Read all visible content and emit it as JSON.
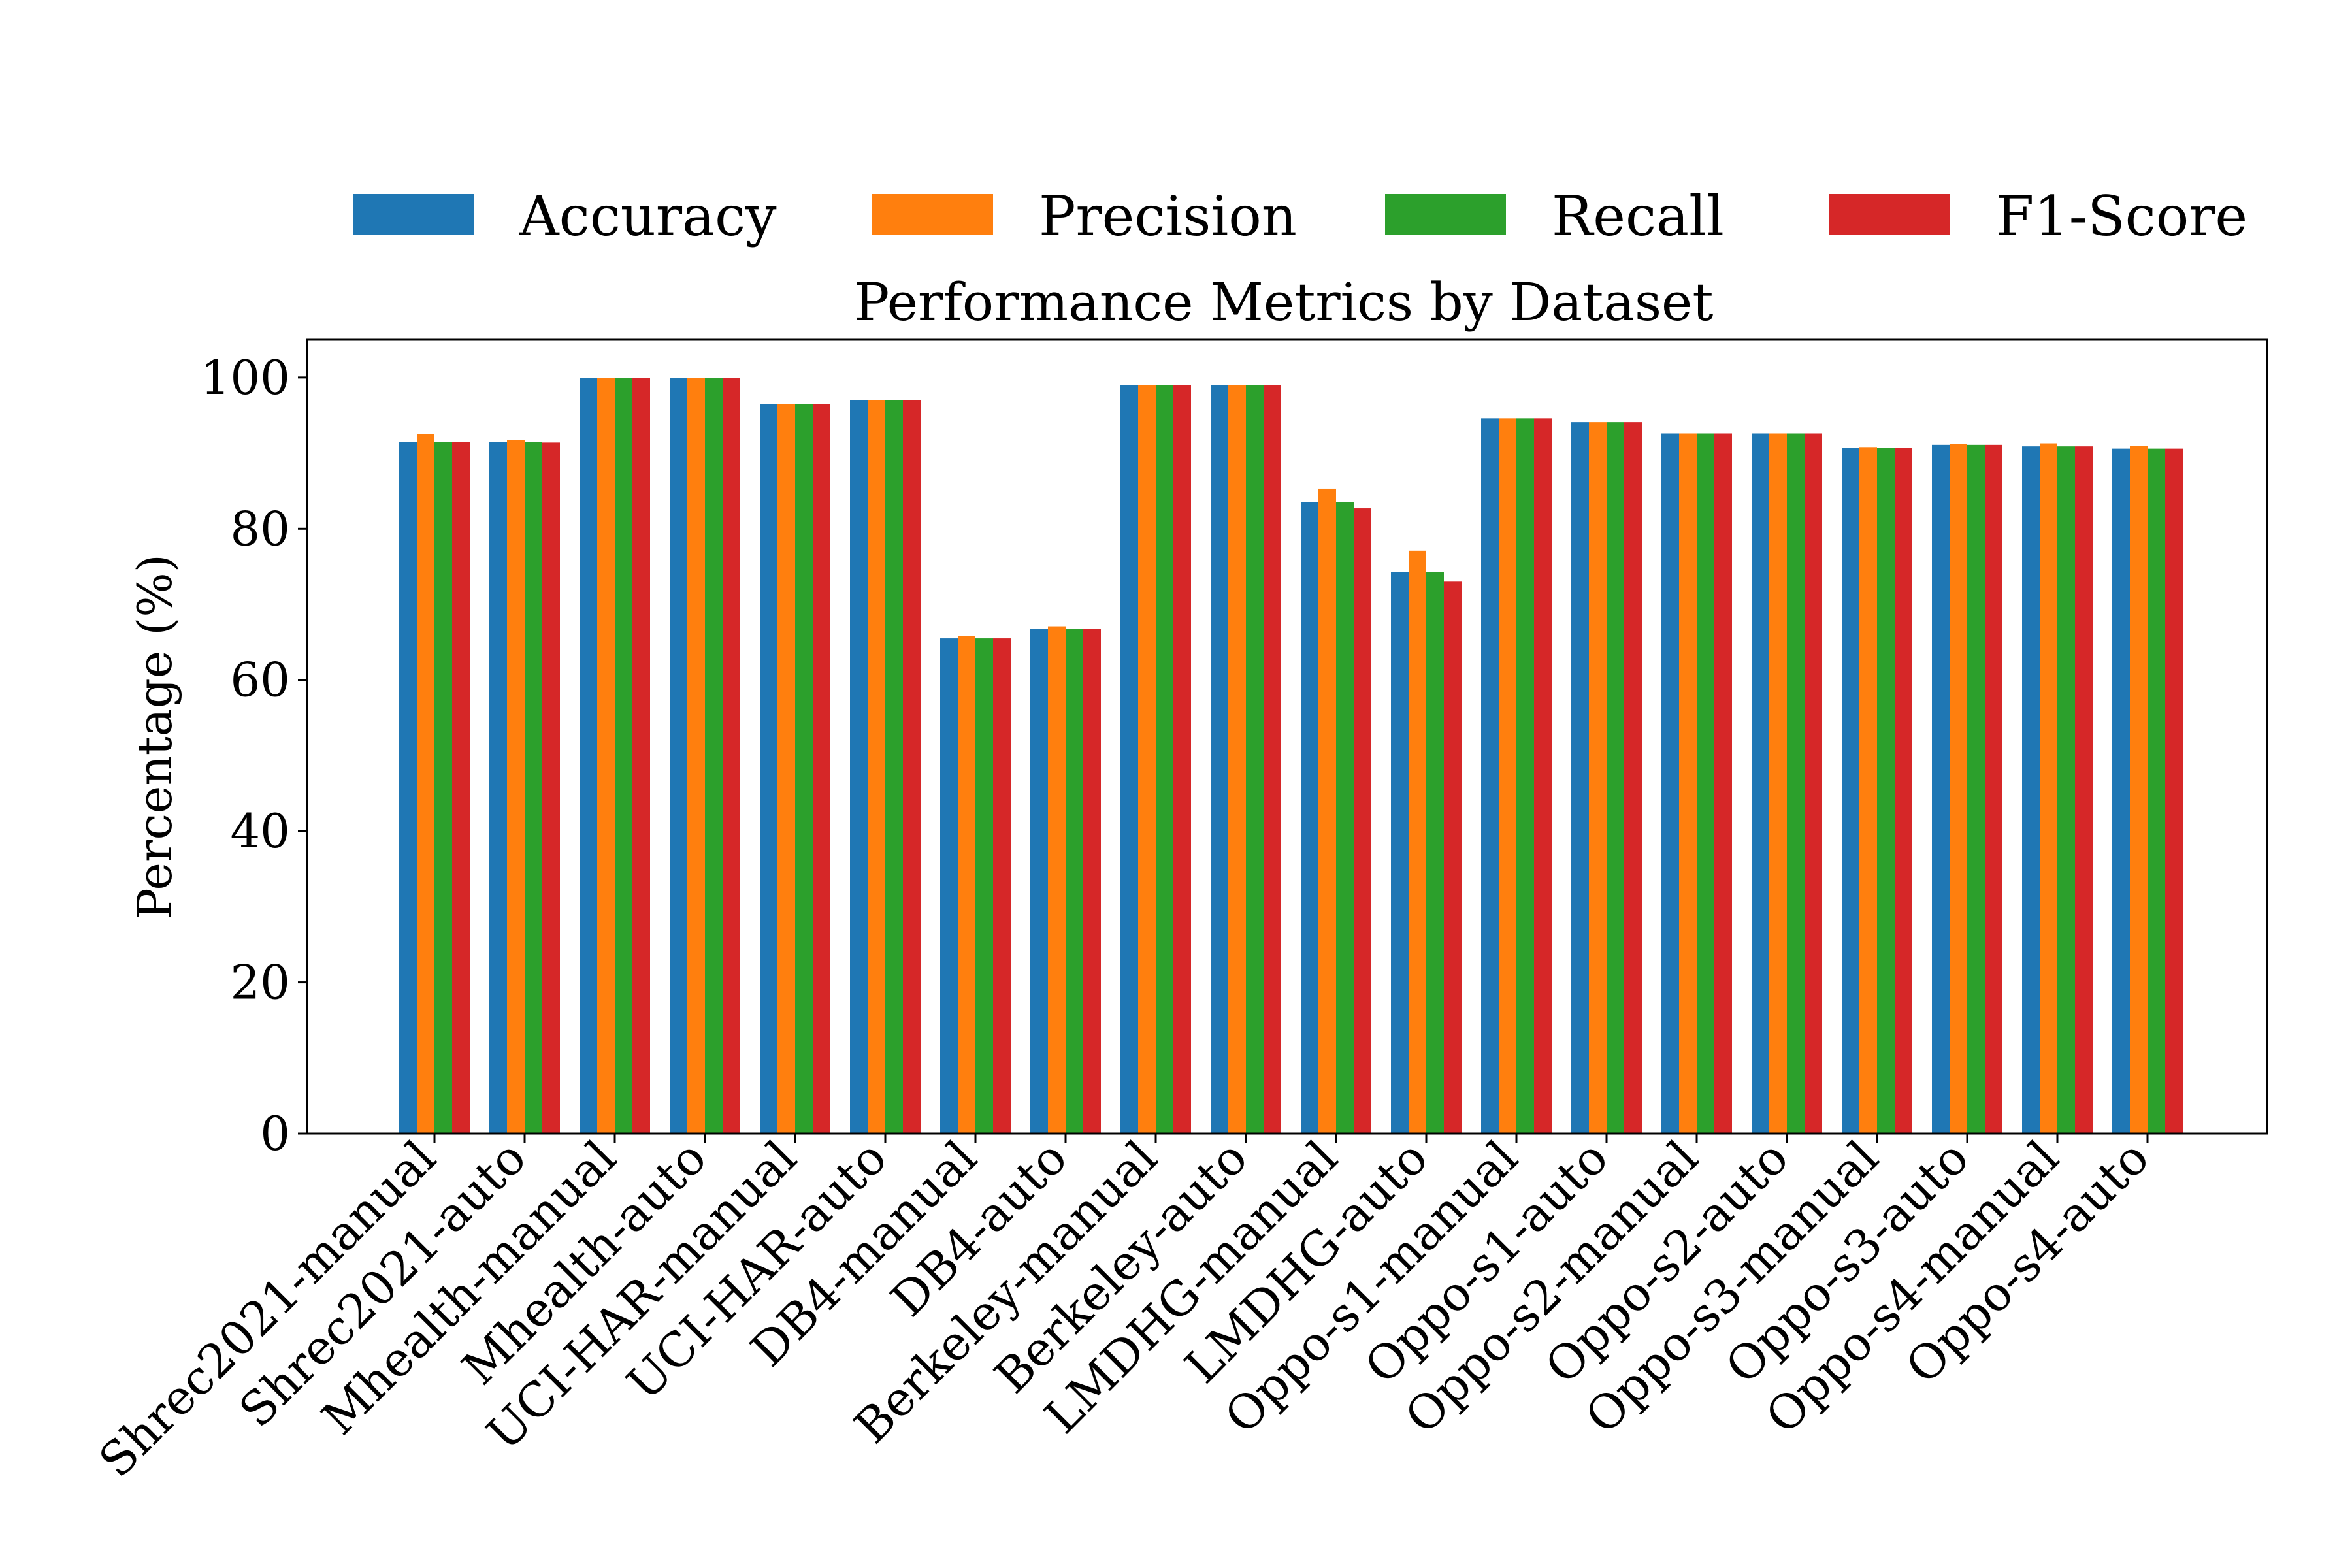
{
  "chart_data": {
    "type": "bar",
    "title": "Performance Metrics by Dataset",
    "xlabel": "",
    "ylabel": "Percentage (%)",
    "ylim": [
      0,
      105
    ],
    "yticks": [
      0,
      20,
      40,
      60,
      80,
      100
    ],
    "grid": false,
    "legend_position": "top",
    "categories": [
      "Shrec2021-manual",
      "Shrec2021-auto",
      "Mhealth-manual",
      "Mhealth-auto",
      "UCI-HAR-manual",
      "UCI-HAR-auto",
      "DB4-manual",
      "DB4-auto",
      "Berkeley-manual",
      "Berkeley-auto",
      "LMDHG-manual",
      "LMDHG-auto",
      "Oppo-s1-manual",
      "Oppo-s1-auto",
      "Oppo-s2-manual",
      "Oppo-s2-auto",
      "Oppo-s3-manual",
      "Oppo-s3-auto",
      "Oppo-s4-manual",
      "Oppo-s4-auto"
    ],
    "series": [
      {
        "name": "Accuracy",
        "color": "#1f77b4",
        "values": [
          91.5,
          91.5,
          99.9,
          99.9,
          96.5,
          97.0,
          65.5,
          66.8,
          99.0,
          99.0,
          83.5,
          74.3,
          94.6,
          94.1,
          92.6,
          92.6,
          90.7,
          91.1,
          90.9,
          90.6
        ]
      },
      {
        "name": "Precision",
        "color": "#ff7f0e",
        "values": [
          92.5,
          91.7,
          99.9,
          99.9,
          96.5,
          97.0,
          65.8,
          67.1,
          99.0,
          99.0,
          85.3,
          77.1,
          94.6,
          94.1,
          92.6,
          92.6,
          90.8,
          91.2,
          91.3,
          91.0
        ]
      },
      {
        "name": "Recall",
        "color": "#2ca02c",
        "values": [
          91.5,
          91.5,
          99.9,
          99.9,
          96.5,
          97.0,
          65.5,
          66.8,
          99.0,
          99.0,
          83.5,
          74.3,
          94.6,
          94.1,
          92.6,
          92.6,
          90.7,
          91.1,
          90.9,
          90.6
        ]
      },
      {
        "name": "F1-Score",
        "color": "#d62728",
        "values": [
          91.5,
          91.4,
          99.9,
          99.9,
          96.5,
          97.0,
          65.5,
          66.8,
          99.0,
          99.0,
          82.7,
          73.0,
          94.6,
          94.1,
          92.6,
          92.6,
          90.7,
          91.1,
          90.9,
          90.6
        ]
      }
    ]
  }
}
